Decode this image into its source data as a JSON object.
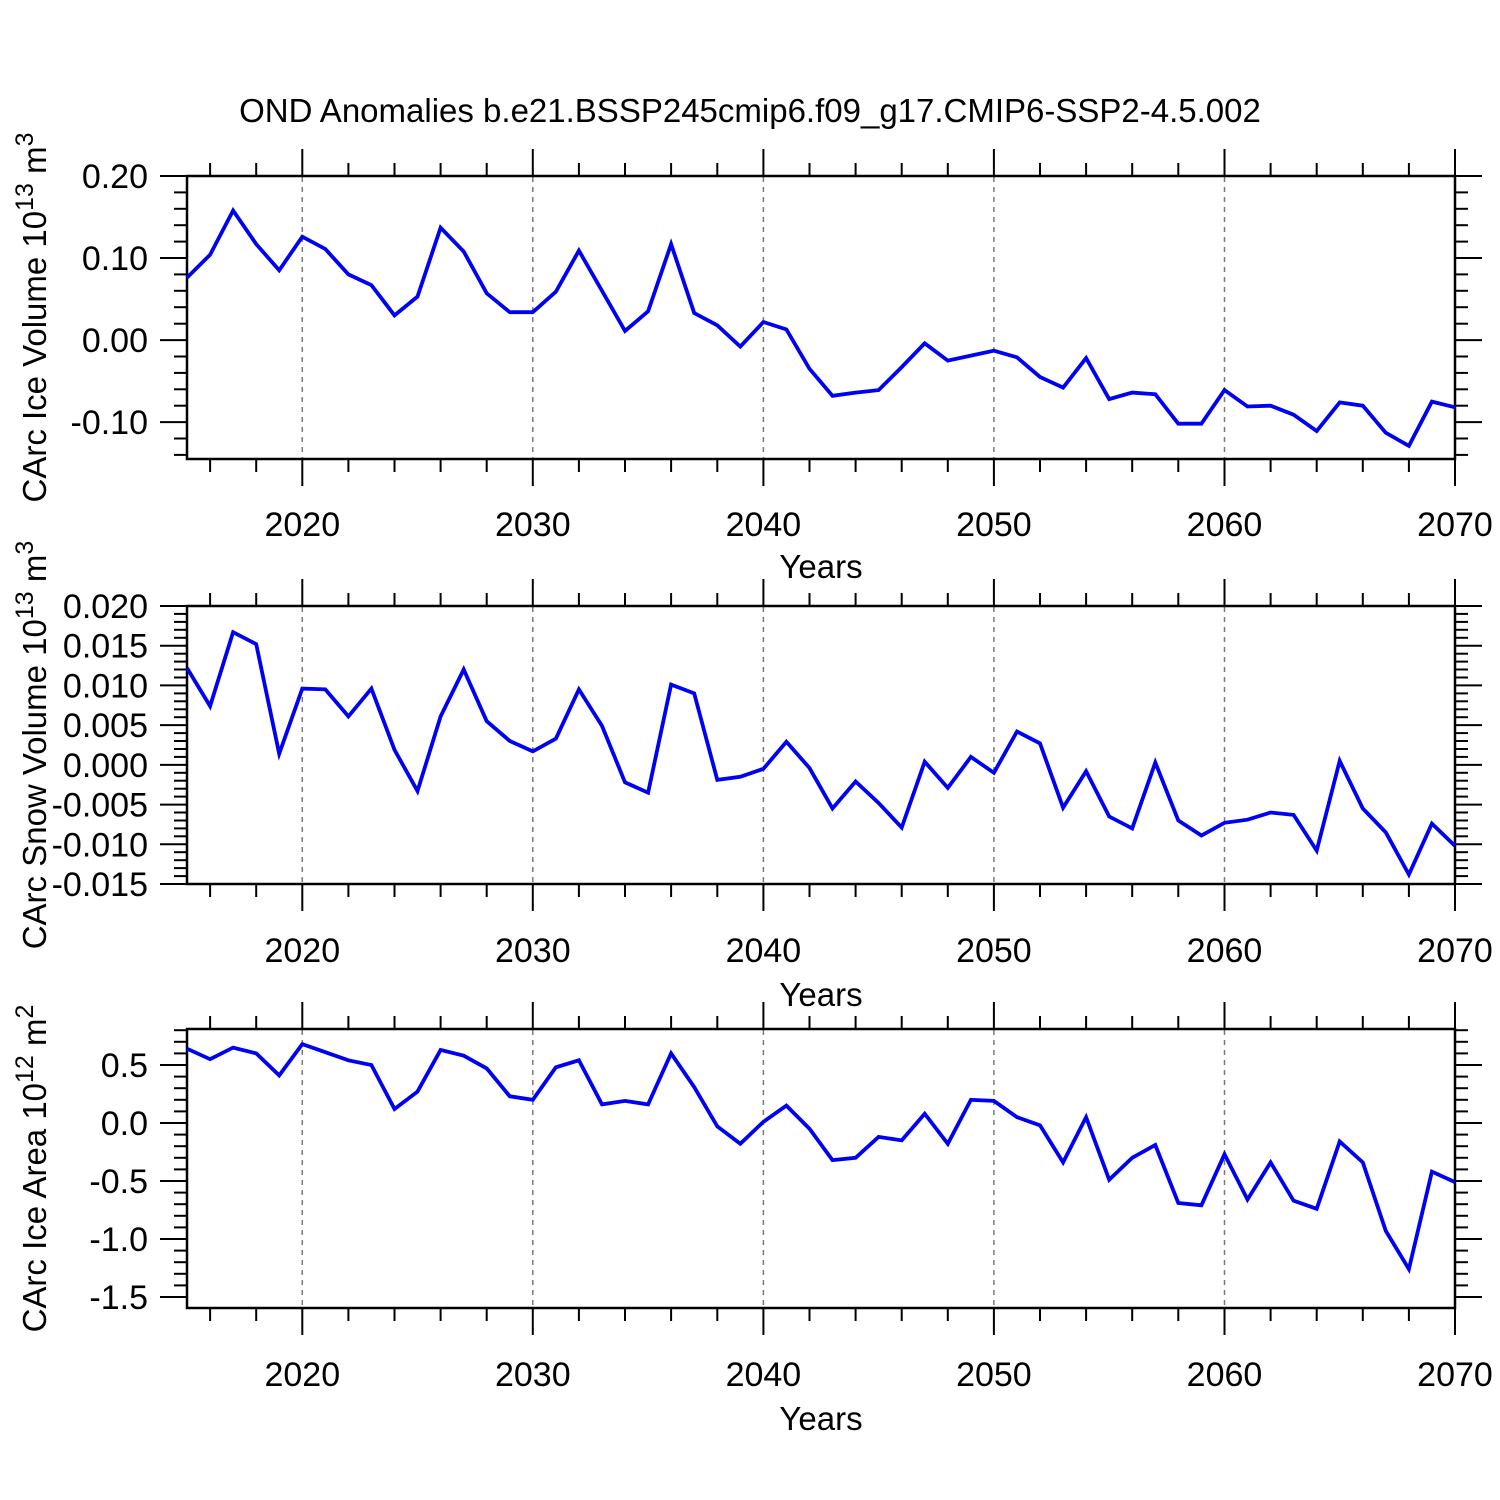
{
  "title": "OND Anomalies b.e21.BSSP245cmip6.f09_g17.CMIP6-SSP2-4.5.002",
  "colors": {
    "line": "#0000f2",
    "axis": "#000000",
    "grid": "#7a7a7a",
    "text": "#000000",
    "background": "#ffffff"
  },
  "x_axis": {
    "label": "Years",
    "range": [
      2015,
      2070
    ],
    "major_ticks": [
      2020,
      2030,
      2040,
      2050,
      2060,
      2070
    ],
    "minor_step": 2,
    "grid_years": [
      2020,
      2030,
      2040,
      2050,
      2060
    ],
    "years": [
      2015,
      2016,
      2017,
      2018,
      2019,
      2020,
      2021,
      2022,
      2023,
      2024,
      2025,
      2026,
      2027,
      2028,
      2029,
      2030,
      2031,
      2032,
      2033,
      2034,
      2035,
      2036,
      2037,
      2038,
      2039,
      2040,
      2041,
      2042,
      2043,
      2044,
      2045,
      2046,
      2047,
      2048,
      2049,
      2050,
      2051,
      2052,
      2053,
      2054,
      2055,
      2056,
      2057,
      2058,
      2059,
      2060,
      2061,
      2062,
      2063,
      2064,
      2065,
      2066,
      2067,
      2068,
      2069,
      2070
    ]
  },
  "chart_data": [
    {
      "type": "line",
      "name": "ice-volume",
      "ylabel": "CArc Ice Volume 10^13 m^3",
      "ylabel_parts": [
        {
          "t": "CArc Ice Volume 10",
          "sup": false
        },
        {
          "t": "13",
          "sup": true
        },
        {
          "t": " m",
          "sup": false
        },
        {
          "t": "3",
          "sup": true
        }
      ],
      "ylim": [
        -0.145,
        0.2
      ],
      "ytick_values": [
        0.2,
        0.1,
        0.0,
        -0.1
      ],
      "ytick_labels": [
        "0.20",
        "0.10",
        "0.00",
        "-0.10"
      ],
      "yminor_step": 0.02,
      "grid": "vertical-dashed",
      "values": [
        0.076,
        0.104,
        0.158,
        0.117,
        0.085,
        0.126,
        0.111,
        0.08,
        0.067,
        0.03,
        0.053,
        0.137,
        0.108,
        0.057,
        0.034,
        0.034,
        0.059,
        0.109,
        0.06,
        0.011,
        0.035,
        0.117,
        0.033,
        0.018,
        -0.008,
        0.022,
        0.013,
        -0.035,
        -0.068,
        -0.064,
        -0.061,
        -0.033,
        -0.004,
        -0.025,
        -0.019,
        -0.013,
        -0.021,
        -0.045,
        -0.058,
        -0.022,
        -0.072,
        -0.064,
        -0.066,
        -0.102,
        -0.102,
        -0.061,
        -0.081,
        -0.08,
        -0.091,
        -0.111,
        -0.076,
        -0.08,
        -0.113,
        -0.129,
        -0.075,
        -0.082
      ]
    },
    {
      "type": "line",
      "name": "snow-volume",
      "ylabel": "CArc Snow Volume 10^13 m^3",
      "ylabel_parts": [
        {
          "t": "CArc Snow Volume 10",
          "sup": false
        },
        {
          "t": "13",
          "sup": true
        },
        {
          "t": " m",
          "sup": false
        },
        {
          "t": "3",
          "sup": true
        }
      ],
      "ylim": [
        -0.015,
        0.02
      ],
      "ytick_values": [
        0.02,
        0.015,
        0.01,
        0.005,
        0.0,
        -0.005,
        -0.01,
        -0.015
      ],
      "ytick_labels": [
        "0.020",
        "0.015",
        "0.010",
        "0.005",
        "0.000",
        "-0.005",
        "-0.010",
        "-0.015"
      ],
      "yminor_step": 0.001,
      "grid": "vertical-dashed",
      "values": [
        0.0122,
        0.0074,
        0.0167,
        0.0152,
        0.0014,
        0.0096,
        0.0095,
        0.0061,
        0.0096,
        0.0019,
        -0.0033,
        0.0061,
        0.012,
        0.0055,
        0.003,
        0.0017,
        0.0033,
        0.0095,
        0.0049,
        -0.0022,
        -0.0035,
        0.0101,
        0.009,
        -0.0019,
        -0.0015,
        -0.0005,
        0.0029,
        -0.0004,
        -0.0055,
        -0.0021,
        -0.0048,
        -0.0079,
        0.0004,
        -0.0029,
        0.001,
        -0.001,
        0.0042,
        0.0027,
        -0.0054,
        -0.0008,
        -0.0065,
        -0.008,
        0.0003,
        -0.007,
        -0.0089,
        -0.0073,
        -0.0069,
        -0.006,
        -0.0063,
        -0.0108,
        0.0005,
        -0.0055,
        -0.0085,
        -0.0138,
        -0.0074,
        -0.0102
      ]
    },
    {
      "type": "line",
      "name": "ice-area",
      "ylabel": "CArc Ice Area 10^12 m^2",
      "ylabel_parts": [
        {
          "t": "CArc Ice Area 10",
          "sup": false
        },
        {
          "t": "12",
          "sup": true
        },
        {
          "t": " m",
          "sup": false
        },
        {
          "t": "2",
          "sup": true
        }
      ],
      "ylim": [
        -1.595,
        0.81
      ],
      "ytick_values": [
        0.5,
        0.0,
        -0.5,
        -1.0,
        -1.5
      ],
      "ytick_labels": [
        "0.5",
        "0.0",
        "-0.5",
        "-1.0",
        "-1.5"
      ],
      "yminor_step": 0.1,
      "grid": "vertical-dashed",
      "values": [
        0.64,
        0.55,
        0.65,
        0.6,
        0.41,
        0.68,
        0.61,
        0.54,
        0.5,
        0.12,
        0.27,
        0.63,
        0.58,
        0.47,
        0.23,
        0.2,
        0.48,
        0.54,
        0.16,
        0.19,
        0.16,
        0.6,
        0.31,
        -0.03,
        -0.18,
        0.01,
        0.15,
        -0.05,
        -0.32,
        -0.3,
        -0.12,
        -0.15,
        0.08,
        -0.18,
        0.2,
        0.19,
        0.05,
        -0.02,
        -0.34,
        0.05,
        -0.49,
        -0.3,
        -0.19,
        -0.69,
        -0.71,
        -0.27,
        -0.66,
        -0.34,
        -0.67,
        -0.74,
        -0.16,
        -0.34,
        -0.93,
        -1.26,
        -0.42,
        -0.51
      ]
    }
  ]
}
